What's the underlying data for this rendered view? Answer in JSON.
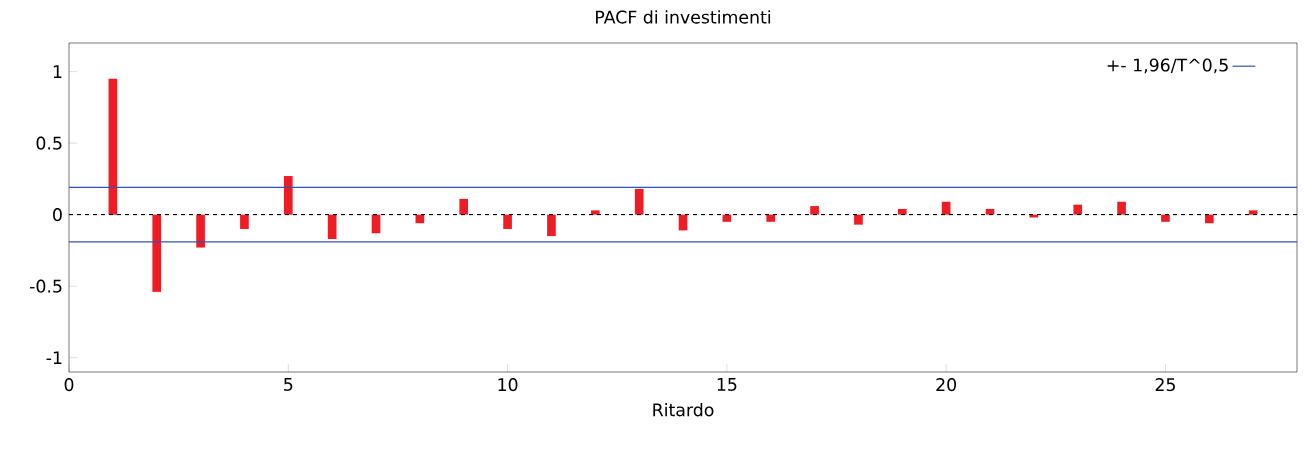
{
  "chart_data": {
    "type": "bar",
    "title": "PACF di investimenti",
    "xlabel": "Ritardo",
    "x": [
      1,
      2,
      3,
      4,
      5,
      6,
      7,
      8,
      9,
      10,
      11,
      12,
      13,
      14,
      15,
      16,
      17,
      18,
      19,
      20,
      21,
      22,
      23,
      24,
      25,
      26,
      27
    ],
    "values": [
      0.95,
      -0.54,
      -0.23,
      -0.1,
      0.27,
      -0.17,
      -0.13,
      -0.06,
      0.11,
      -0.1,
      -0.15,
      0.03,
      0.18,
      -0.11,
      -0.05,
      -0.05,
      0.06,
      -0.07,
      0.04,
      0.09,
      0.04,
      -0.02,
      0.07,
      0.09,
      -0.05,
      -0.06,
      0.03
    ],
    "color": "#ee1c25",
    "xlim": [
      0,
      28
    ],
    "xticks": [
      0,
      5,
      10,
      15,
      20,
      25
    ],
    "ylim": [
      -1.1,
      1.2
    ],
    "yticks": [
      -1,
      -0.5,
      0,
      0.5,
      1
    ],
    "ref_lines": [
      {
        "axis": "y",
        "value": 0.19,
        "label": "+- 1,96/T^0,5",
        "color": "#3355aa",
        "line_style": "solid"
      },
      {
        "axis": "y",
        "value": -0.19,
        "color": "#3355aa",
        "line_style": "solid"
      },
      {
        "axis": "y",
        "value": 0,
        "color": "#000000",
        "line_style": "dashed"
      }
    ],
    "legend": "top right"
  }
}
